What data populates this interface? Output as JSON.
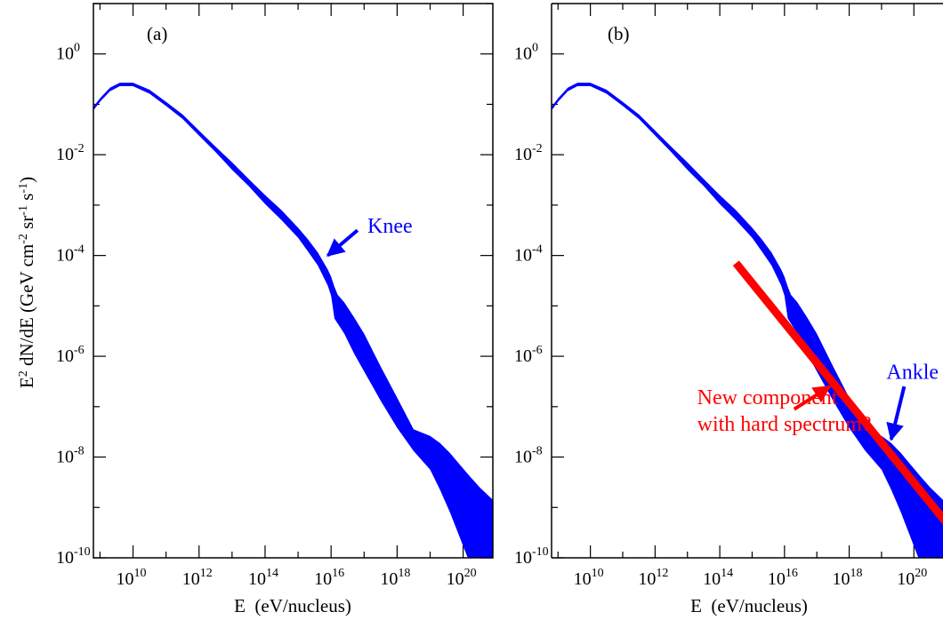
{
  "chart_data": [
    {
      "panel": "a",
      "type": "area",
      "panel_label": "(a)",
      "xlabel": "E  (eV/nucleus)",
      "ylabel_parts": [
        "E",
        "2",
        " dN/dE  (GeV cm",
        "-2",
        " sr",
        "-1",
        " s",
        "-1",
        ")"
      ],
      "x_scale": "log",
      "y_scale": "log",
      "xlim_log10": [
        8.8,
        20.9
      ],
      "ylim_log10": [
        -10,
        1
      ],
      "x_ticks": [
        {
          "base": "10",
          "exp": "10",
          "log10": 10
        },
        {
          "base": "10",
          "exp": "12",
          "log10": 12
        },
        {
          "base": "10",
          "exp": "14",
          "log10": 14
        },
        {
          "base": "10",
          "exp": "16",
          "log10": 16
        },
        {
          "base": "10",
          "exp": "18",
          "log10": 18
        },
        {
          "base": "10",
          "exp": "20",
          "log10": 20
        }
      ],
      "y_ticks": [
        {
          "base": "10",
          "exp": "0",
          "log10": 0
        },
        {
          "base": "10",
          "exp": "-2",
          "log10": -2
        },
        {
          "base": "10",
          "exp": "-4",
          "log10": -4
        },
        {
          "base": "10",
          "exp": "-6",
          "log10": -6
        },
        {
          "base": "10",
          "exp": "-8",
          "log10": -8
        },
        {
          "base": "10",
          "exp": "-10",
          "log10": -10
        }
      ],
      "band_color": "#0000ff",
      "band_log10": {
        "x": [
          8.8,
          9.0,
          9.3,
          9.6,
          10.0,
          10.5,
          11.0,
          11.5,
          12.0,
          12.5,
          13.0,
          13.5,
          14.0,
          14.5,
          15.0,
          15.3,
          15.6,
          15.9,
          16.0,
          16.1,
          16.2,
          16.4,
          16.7,
          17.0,
          17.5,
          18.0,
          18.5,
          19.0,
          19.3,
          19.6,
          19.9,
          20.2,
          20.5,
          20.9
        ],
        "upper": [
          -1.05,
          -0.88,
          -0.67,
          -0.57,
          -0.57,
          -0.71,
          -0.95,
          -1.2,
          -1.52,
          -1.84,
          -2.15,
          -2.48,
          -2.8,
          -3.1,
          -3.45,
          -3.68,
          -3.94,
          -4.28,
          -4.42,
          -4.62,
          -4.78,
          -4.93,
          -5.23,
          -5.55,
          -6.2,
          -6.82,
          -7.45,
          -7.58,
          -7.72,
          -7.92,
          -8.15,
          -8.38,
          -8.6,
          -8.85
        ],
        "lower": [
          -1.12,
          -0.95,
          -0.74,
          -0.64,
          -0.64,
          -0.79,
          -1.03,
          -1.29,
          -1.62,
          -1.95,
          -2.3,
          -2.62,
          -2.98,
          -3.3,
          -3.65,
          -3.92,
          -4.2,
          -4.6,
          -4.8,
          -5.25,
          -5.35,
          -5.55,
          -5.95,
          -6.3,
          -6.88,
          -7.42,
          -7.88,
          -8.25,
          -8.65,
          -9.1,
          -9.6,
          -10.1,
          -10.6,
          -11.0
        ]
      },
      "annotations": [
        {
          "text": "Knee",
          "color": "#0000ff",
          "arrow_to_log10": [
            15.9,
            -4.0
          ],
          "arrow_from_log10": [
            16.8,
            -3.5
          ],
          "text_at_log10": [
            17.1,
            -3.55
          ]
        }
      ]
    },
    {
      "panel": "b",
      "type": "area",
      "panel_label": "(b)",
      "xlabel": "E  (eV/nucleus)",
      "x_scale": "log",
      "y_scale": "log",
      "xlim_log10": [
        8.8,
        20.9
      ],
      "ylim_log10": [
        -10,
        1
      ],
      "x_ticks": [
        {
          "base": "10",
          "exp": "10",
          "log10": 10
        },
        {
          "base": "10",
          "exp": "12",
          "log10": 12
        },
        {
          "base": "10",
          "exp": "14",
          "log10": 14
        },
        {
          "base": "10",
          "exp": "16",
          "log10": 16
        },
        {
          "base": "10",
          "exp": "18",
          "log10": 18
        },
        {
          "base": "10",
          "exp": "20",
          "log10": 20
        }
      ],
      "y_ticks": [
        {
          "base": "10",
          "exp": "0",
          "log10": 0
        },
        {
          "base": "10",
          "exp": "-2",
          "log10": -2
        },
        {
          "base": "10",
          "exp": "-4",
          "log10": -4
        },
        {
          "base": "10",
          "exp": "-6",
          "log10": -6
        },
        {
          "base": "10",
          "exp": "-8",
          "log10": -8
        },
        {
          "base": "10",
          "exp": "-10",
          "log10": -10
        }
      ],
      "band_color": "#0000ff",
      "band_log10": {
        "x": [
          8.8,
          9.0,
          9.3,
          9.6,
          10.0,
          10.5,
          11.0,
          11.5,
          12.0,
          12.5,
          13.0,
          13.5,
          14.0,
          14.5,
          15.0,
          15.3,
          15.6,
          15.9,
          16.0,
          16.1,
          16.2,
          16.4,
          16.7,
          17.0,
          17.5,
          18.0,
          18.5,
          19.0,
          19.3,
          19.6,
          19.9,
          20.2,
          20.5,
          20.9
        ],
        "upper": [
          -1.05,
          -0.88,
          -0.67,
          -0.57,
          -0.57,
          -0.71,
          -0.95,
          -1.2,
          -1.52,
          -1.84,
          -2.15,
          -2.48,
          -2.8,
          -3.1,
          -3.45,
          -3.68,
          -3.94,
          -4.28,
          -4.42,
          -4.62,
          -4.78,
          -4.93,
          -5.23,
          -5.55,
          -6.2,
          -6.82,
          -7.45,
          -7.58,
          -7.72,
          -7.92,
          -8.15,
          -8.38,
          -8.6,
          -8.85
        ],
        "lower": [
          -1.12,
          -0.95,
          -0.74,
          -0.64,
          -0.64,
          -0.79,
          -1.03,
          -1.29,
          -1.62,
          -1.95,
          -2.3,
          -2.62,
          -2.98,
          -3.3,
          -3.65,
          -3.92,
          -4.2,
          -4.6,
          -4.8,
          -5.25,
          -5.35,
          -5.55,
          -5.95,
          -6.3,
          -6.88,
          -7.42,
          -7.88,
          -8.25,
          -8.65,
          -9.1,
          -9.6,
          -10.1,
          -10.6,
          -11.0
        ]
      },
      "extra_line": {
        "color": "#ff0000",
        "x_log10": [
          14.5,
          21.0
        ],
        "y_log10": [
          -4.15,
          -9.3
        ]
      },
      "annotations": [
        {
          "text": "Ankle",
          "color": "#0000ff",
          "arrow_to_log10": [
            19.3,
            -7.65
          ],
          "arrow_from_log10": [
            19.7,
            -6.6
          ],
          "text_at_log10": [
            19.15,
            -6.45
          ]
        },
        {
          "lines": [
            "New component",
            "with hard spectrum?"
          ],
          "color": "#ff0000",
          "arrow_to_log10": [
            17.4,
            -6.6
          ],
          "arrow_from_log10": [
            16.3,
            -7.05
          ],
          "text_at_log10": [
            13.3,
            -6.95
          ]
        }
      ]
    }
  ]
}
